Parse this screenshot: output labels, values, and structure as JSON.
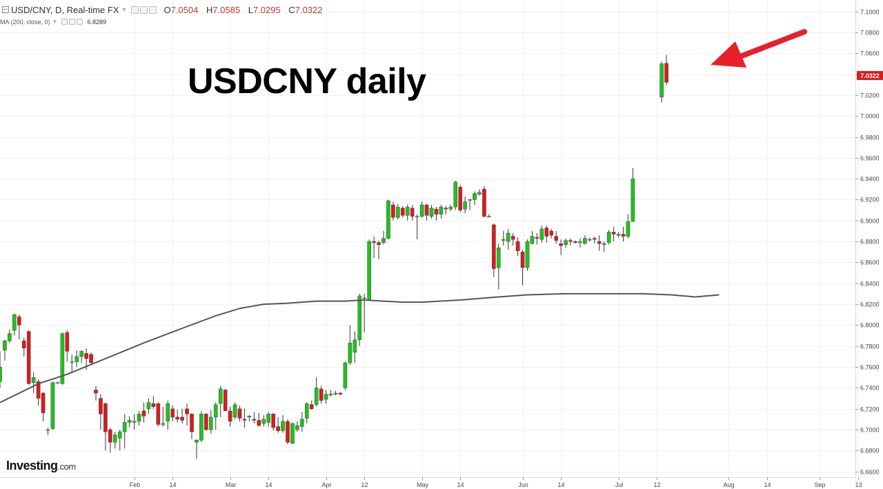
{
  "header": {
    "symbol": "USD/CNY, D, Real-time FX",
    "open_label": "O",
    "open": "7.0504",
    "high_label": "H",
    "high": "7.0585",
    "low_label": "L",
    "low": "7.0295",
    "close_label": "C",
    "close": "7.0322"
  },
  "indicator": {
    "label": "MA (200, close, 0)",
    "value": "6.8289"
  },
  "annotation_title": "USDCNY daily",
  "logo": {
    "name": "Investing",
    "domain": ".com"
  },
  "colors": {
    "up": "#22c01e",
    "down": "#d41f1f",
    "ma": "#555555",
    "price_tag": "#d41f1f",
    "arrow": "#e8202a",
    "grid": "#eef0f3"
  },
  "chart_data": {
    "type": "candlestick",
    "title": "",
    "xlabel": "",
    "ylabel": "",
    "ylim": [
      6.6545,
      7.107
    ],
    "y_ticks": [
      "6.6600",
      "6.6800",
      "6.7000",
      "6.7200",
      "6.7400",
      "6.7600",
      "6.7800",
      "6.8000",
      "6.8200",
      "6.8400",
      "6.8600",
      "6.8800",
      "6.9000",
      "6.9200",
      "6.9400",
      "6.9600",
      "6.9800",
      "7.0000",
      "7.0200",
      "7.0400",
      "7.0600",
      "7.0800",
      "7.1000"
    ],
    "x_tick_labels": [
      {
        "label": "Feb",
        "day": 28
      },
      {
        "label": "14",
        "day": 36
      },
      {
        "label": "Mar",
        "day": 48
      },
      {
        "label": "14",
        "day": 56
      },
      {
        "label": "Apr",
        "day": 68
      },
      {
        "label": "12",
        "day": 76
      },
      {
        "label": "May",
        "day": 88
      },
      {
        "label": "14",
        "day": 96
      },
      {
        "label": "Jun",
        "day": 109
      },
      {
        "label": "14",
        "day": 117
      },
      {
        "label": "Jul",
        "day": 129
      },
      {
        "label": "12",
        "day": 137
      },
      {
        "label": "Aug",
        "day": 152
      },
      {
        "label": "14",
        "day": 160
      },
      {
        "label": "Sep",
        "day": 171
      },
      {
        "label": "13",
        "day": 179
      }
    ],
    "last_price": "7.0322",
    "candles": [
      [
        6.746,
        6.76,
        6.74,
        6.775
      ],
      [
        6.776,
        6.785,
        6.766,
        6.786
      ],
      [
        6.785,
        6.792,
        6.783,
        6.796
      ],
      [
        6.795,
        6.81,
        6.79,
        6.811
      ],
      [
        6.808,
        6.8,
        6.786,
        6.81
      ],
      [
        6.785,
        6.778,
        6.77,
        6.788
      ],
      [
        6.794,
        6.744,
        6.743,
        6.795
      ],
      [
        6.745,
        6.75,
        6.735,
        6.755
      ],
      [
        6.746,
        6.73,
        6.723,
        6.748
      ],
      [
        6.735,
        6.716,
        6.708,
        6.736
      ],
      [
        6.7,
        6.7,
        6.695,
        6.702
      ],
      [
        6.701,
        6.745,
        6.7,
        6.746
      ],
      [
        6.745,
        6.745,
        6.744,
        6.746
      ],
      [
        6.744,
        6.792,
        6.743,
        6.793
      ],
      [
        6.793,
        6.775,
        6.765,
        6.795
      ],
      [
        6.765,
        6.765,
        6.754,
        6.772
      ],
      [
        6.765,
        6.77,
        6.76,
        6.776
      ],
      [
        6.77,
        6.775,
        6.764,
        6.776
      ],
      [
        6.773,
        6.768,
        6.757,
        6.778
      ],
      [
        6.772,
        6.764,
        6.762,
        6.774
      ],
      [
        6.738,
        6.735,
        6.728,
        6.742
      ],
      [
        6.73,
        6.715,
        6.7,
        6.734
      ],
      [
        6.725,
        6.698,
        6.68,
        6.726
      ],
      [
        6.7,
        6.688,
        6.678,
        6.702
      ],
      [
        6.688,
        6.695,
        6.682,
        6.698
      ],
      [
        6.692,
        6.698,
        6.68,
        6.7
      ],
      [
        6.698,
        6.707,
        6.682,
        6.715
      ],
      [
        6.707,
        6.709,
        6.702,
        6.713
      ],
      [
        6.707,
        6.708,
        6.7,
        6.715
      ],
      [
        6.708,
        6.715,
        6.704,
        6.718
      ],
      [
        6.718,
        6.713,
        6.707,
        6.726
      ],
      [
        6.72,
        6.726,
        6.715,
        6.73
      ],
      [
        6.725,
        6.722,
        6.72,
        6.732
      ],
      [
        6.725,
        6.705,
        6.703,
        6.726
      ],
      [
        6.705,
        6.706,
        6.703,
        6.722
      ],
      [
        6.708,
        6.725,
        6.7,
        6.728
      ],
      [
        6.72,
        6.712,
        6.708,
        6.723
      ],
      [
        6.712,
        6.71,
        6.707,
        6.719
      ],
      [
        6.712,
        6.709,
        6.706,
        6.72
      ],
      [
        6.72,
        6.715,
        6.704,
        6.725
      ],
      [
        6.715,
        6.698,
        6.691,
        6.716
      ],
      [
        6.688,
        6.69,
        6.672,
        6.691
      ],
      [
        6.69,
        6.715,
        6.688,
        6.718
      ],
      [
        6.715,
        6.7,
        6.699,
        6.716
      ],
      [
        6.7,
        6.712,
        6.696,
        6.719
      ],
      [
        6.712,
        6.724,
        6.7,
        6.726
      ],
      [
        6.725,
        6.739,
        6.712,
        6.742
      ],
      [
        6.738,
        6.718,
        6.718,
        6.739
      ],
      [
        6.718,
        6.708,
        6.703,
        6.722
      ],
      [
        6.712,
        6.724,
        6.71,
        6.726
      ],
      [
        6.72,
        6.711,
        6.708,
        6.723
      ],
      [
        6.71,
        6.709,
        6.702,
        6.72
      ],
      [
        6.712,
        6.713,
        6.708,
        6.714
      ],
      [
        6.71,
        6.709,
        6.706,
        6.717
      ],
      [
        6.709,
        6.704,
        6.703,
        6.716
      ],
      [
        6.706,
        6.71,
        6.703,
        6.714
      ],
      [
        6.707,
        6.715,
        6.703,
        6.717
      ],
      [
        6.715,
        6.702,
        6.699,
        6.716
      ],
      [
        6.703,
        6.699,
        6.697,
        6.712
      ],
      [
        6.699,
        6.708,
        6.697,
        6.714
      ],
      [
        6.708,
        6.688,
        6.686,
        6.71
      ],
      [
        6.687,
        6.706,
        6.686,
        6.707
      ],
      [
        6.7,
        6.704,
        6.698,
        6.708
      ],
      [
        6.703,
        6.71,
        6.698,
        6.717
      ],
      [
        6.711,
        6.725,
        6.706,
        6.726
      ],
      [
        6.724,
        6.72,
        6.719,
        6.728
      ],
      [
        6.724,
        6.74,
        6.722,
        6.75
      ],
      [
        6.739,
        6.728,
        6.725,
        6.742
      ],
      [
        6.729,
        6.734,
        6.725,
        6.738
      ],
      [
        6.733,
        6.734,
        6.732,
        6.738
      ],
      [
        6.734,
        6.735,
        6.733,
        6.737
      ],
      [
        6.735,
        6.734,
        6.733,
        6.736
      ],
      [
        6.74,
        6.764,
        6.738,
        6.765
      ],
      [
        6.764,
        6.783,
        6.762,
        6.8
      ],
      [
        6.774,
        6.786,
        6.764,
        6.794
      ],
      [
        6.786,
        6.828,
        6.78,
        6.83
      ],
      [
        6.826,
        6.826,
        6.793,
        6.83
      ],
      [
        6.824,
        6.88,
        6.823,
        6.882
      ],
      [
        6.88,
        6.879,
        6.864,
        6.885
      ],
      [
        6.879,
        6.877,
        6.863,
        6.881
      ],
      [
        6.879,
        6.883,
        6.877,
        6.89
      ],
      [
        6.883,
        6.919,
        6.882,
        6.92
      ],
      [
        6.915,
        6.903,
        6.9,
        6.918
      ],
      [
        6.903,
        6.913,
        6.901,
        6.916
      ],
      [
        6.912,
        6.905,
        6.903,
        6.914
      ],
      [
        6.905,
        6.913,
        6.9,
        6.915
      ],
      [
        6.912,
        6.904,
        6.9,
        6.915
      ],
      [
        6.904,
        6.904,
        6.882,
        6.906
      ],
      [
        6.904,
        6.915,
        6.903,
        6.918
      ],
      [
        6.915,
        6.905,
        6.9,
        6.916
      ],
      [
        6.904,
        6.912,
        6.902,
        6.915
      ],
      [
        6.911,
        6.906,
        6.9,
        6.913
      ],
      [
        6.906,
        6.913,
        6.902,
        6.915
      ],
      [
        6.912,
        6.911,
        6.906,
        6.914
      ],
      [
        6.911,
        6.913,
        6.909,
        6.915
      ],
      [
        6.913,
        6.937,
        6.91,
        6.938
      ],
      [
        6.932,
        6.91,
        6.908,
        6.934
      ],
      [
        6.911,
        6.918,
        6.907,
        6.923
      ],
      [
        6.92,
        6.92,
        6.91,
        6.921
      ],
      [
        6.92,
        6.926,
        6.915,
        6.928
      ],
      [
        6.925,
        6.927,
        6.924,
        6.93
      ],
      [
        6.93,
        6.904,
        6.903,
        6.933
      ],
      [
        6.904,
        6.904,
        6.903,
        6.906
      ],
      [
        6.896,
        6.854,
        6.846,
        6.897
      ],
      [
        6.855,
        6.874,
        6.834,
        6.878
      ],
      [
        6.881,
        6.882,
        6.876,
        6.89
      ],
      [
        6.88,
        6.888,
        6.872,
        6.892
      ],
      [
        6.885,
        6.882,
        6.876,
        6.888
      ],
      [
        6.88,
        6.871,
        6.866,
        6.884
      ],
      [
        6.87,
        6.855,
        6.838,
        6.872
      ],
      [
        6.855,
        6.88,
        6.852,
        6.882
      ],
      [
        6.878,
        6.885,
        6.877,
        6.89
      ],
      [
        6.884,
        6.883,
        6.877,
        6.888
      ],
      [
        6.882,
        6.892,
        6.879,
        6.895
      ],
      [
        6.893,
        6.885,
        6.879,
        6.895
      ],
      [
        6.89,
        6.886,
        6.883,
        6.892
      ],
      [
        6.885,
        6.881,
        6.878,
        6.89
      ],
      [
        6.878,
        6.876,
        6.867,
        6.882
      ],
      [
        6.877,
        6.881,
        6.874,
        6.883
      ],
      [
        6.881,
        6.88,
        6.876,
        6.883
      ],
      [
        6.88,
        6.879,
        6.878,
        6.881
      ],
      [
        6.879,
        6.88,
        6.874,
        6.883
      ],
      [
        6.878,
        6.883,
        6.877,
        6.886
      ],
      [
        6.882,
        6.882,
        6.88,
        6.884
      ],
      [
        6.883,
        6.882,
        6.878,
        6.885
      ],
      [
        6.88,
        6.878,
        6.871,
        6.886
      ],
      [
        6.877,
        6.878,
        6.87,
        6.88
      ],
      [
        6.879,
        6.889,
        6.877,
        6.891
      ],
      [
        6.889,
        6.887,
        6.88,
        6.894
      ],
      [
        6.886,
        6.887,
        6.884,
        6.889
      ],
      [
        6.887,
        6.885,
        6.88,
        6.894
      ],
      [
        6.885,
        6.899,
        6.883,
        6.906
      ],
      [
        6.899,
        6.94,
        6.899,
        6.95
      ],
      [
        null,
        null,
        null,
        null
      ],
      [
        null,
        null,
        null,
        null
      ],
      [
        null,
        null,
        null,
        null
      ],
      [
        null,
        null,
        null,
        null
      ],
      [
        null,
        null,
        null,
        null
      ],
      [
        7.018,
        7.05,
        7.013,
        7.052
      ],
      [
        7.0504,
        7.0322,
        7.0295,
        7.0585
      ]
    ],
    "ma_series": {
      "name": "MA (200, close, 0)",
      "points": [
        [
          0,
          6.726
        ],
        [
          8,
          6.744
        ],
        [
          14,
          6.753
        ],
        [
          22,
          6.768
        ],
        [
          30,
          6.783
        ],
        [
          38,
          6.797
        ],
        [
          45,
          6.809
        ],
        [
          50,
          6.816
        ],
        [
          55,
          6.82
        ],
        [
          60,
          6.821
        ],
        [
          66,
          6.823
        ],
        [
          72,
          6.823
        ],
        [
          76,
          6.824
        ],
        [
          80,
          6.823
        ],
        [
          84,
          6.822
        ],
        [
          88,
          6.822
        ],
        [
          96,
          6.824
        ],
        [
          104,
          6.827
        ],
        [
          110,
          6.829
        ],
        [
          118,
          6.83
        ],
        [
          126,
          6.83
        ],
        [
          134,
          6.83
        ],
        [
          140,
          6.829
        ],
        [
          145,
          6.827
        ],
        [
          150,
          6.829
        ]
      ]
    }
  }
}
